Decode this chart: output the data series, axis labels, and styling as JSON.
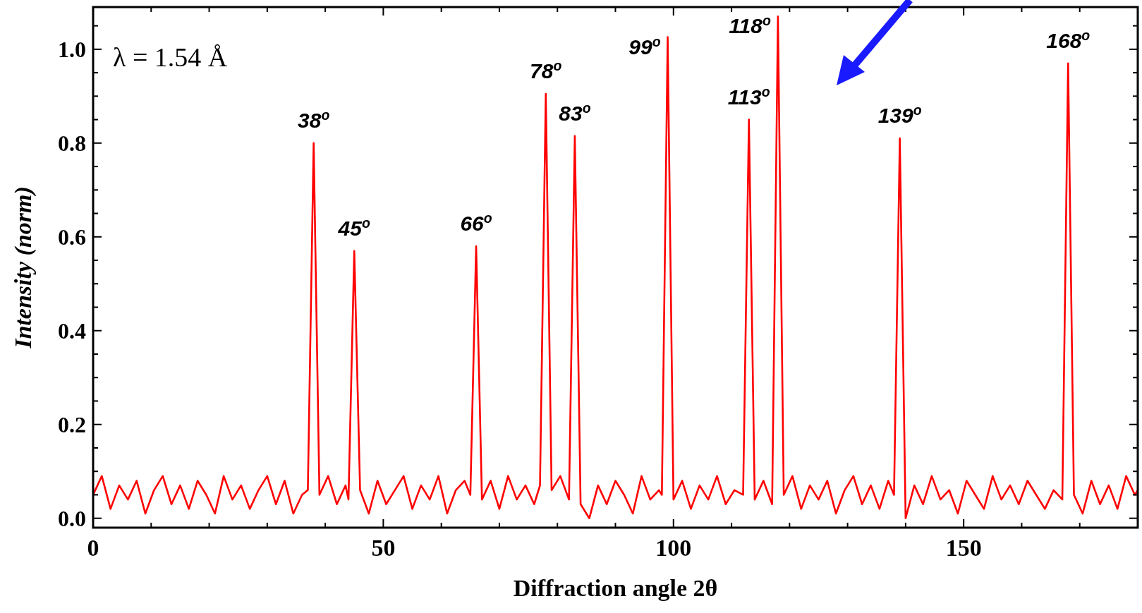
{
  "chart_data": {
    "type": "line",
    "xlabel": "Diffraction angle 2θ",
    "ylabel": "Intensity (norm)",
    "xlim": [
      0,
      180
    ],
    "ylim": [
      -0.02,
      1.09
    ],
    "xticks": [
      0,
      {
        "value": 10,
        "label": null
      },
      {
        "value": 20,
        "label": null
      },
      {
        "value": 30,
        "label": null
      },
      {
        "value": 40,
        "label": null
      },
      50,
      {
        "value": 60,
        "label": null
      },
      {
        "value": 70,
        "label": null
      },
      {
        "value": 80,
        "label": null
      },
      {
        "value": 90,
        "label": null
      },
      100,
      {
        "value": 110,
        "label": null
      },
      {
        "value": 120,
        "label": null
      },
      {
        "value": 130,
        "label": null
      },
      {
        "value": 140,
        "label": null
      },
      150,
      {
        "value": 160,
        "label": null
      },
      {
        "value": 170,
        "label": null
      }
    ],
    "yticks": [
      {
        "value": 0,
        "label": "0.0"
      },
      {
        "value": 0.05,
        "label": null
      },
      {
        "value": 0.1,
        "label": null
      },
      {
        "value": 0.15,
        "label": null
      },
      {
        "value": 0.2,
        "label": "0.2"
      },
      {
        "value": 0.25,
        "label": null
      },
      {
        "value": 0.3,
        "label": null
      },
      {
        "value": 0.35,
        "label": null
      },
      {
        "value": 0.4,
        "label": "0.4"
      },
      {
        "value": 0.45,
        "label": null
      },
      {
        "value": 0.5,
        "label": null
      },
      {
        "value": 0.55,
        "label": null
      },
      {
        "value": 0.6,
        "label": "0.6"
      },
      {
        "value": 0.65,
        "label": null
      },
      {
        "value": 0.7,
        "label": null
      },
      {
        "value": 0.75,
        "label": null
      },
      {
        "value": 0.8,
        "label": "0.8"
      },
      {
        "value": 0.85,
        "label": null
      },
      {
        "value": 0.9,
        "label": null
      },
      {
        "value": 0.95,
        "label": null
      },
      {
        "value": 1.0,
        "label": "1.0"
      },
      {
        "value": 1.05,
        "label": null
      }
    ],
    "grid": false,
    "series": [
      {
        "color": "#ff0000",
        "x": [
          0,
          1.5,
          3,
          4.5,
          6,
          7.5,
          9,
          10.5,
          12,
          13.5,
          15,
          16.5,
          18,
          19.5,
          21,
          22.5,
          24,
          25.5,
          27,
          28.5,
          30,
          31.5,
          33,
          34.5,
          36,
          37,
          38,
          39,
          40.5,
          42,
          43.5,
          44,
          45,
          46,
          47.5,
          49,
          50.5,
          52,
          53.5,
          55,
          56.5,
          58,
          59.5,
          61,
          62.5,
          64,
          65,
          66,
          67,
          68.5,
          70,
          71.5,
          73,
          74.5,
          76,
          77,
          78,
          79,
          80.5,
          82,
          83,
          84,
          85.5,
          87,
          88.5,
          90,
          91.5,
          93,
          94.5,
          96,
          97.5,
          98,
          99,
          100,
          101.5,
          103,
          104.5,
          106,
          107.5,
          109,
          110.5,
          112,
          113,
          114,
          115.5,
          117,
          118,
          119,
          120.5,
          122,
          123.5,
          125,
          126.5,
          128,
          129.5,
          131,
          132.5,
          134,
          135.5,
          137,
          138,
          139,
          140,
          141.5,
          143,
          144.5,
          146,
          147.5,
          149,
          150.5,
          152,
          153.5,
          155,
          156.5,
          158,
          159.5,
          161,
          162.5,
          164,
          165.5,
          167,
          168,
          169,
          170.5,
          172,
          173.5,
          175,
          176.5,
          178,
          179.5,
          180
        ],
        "values": [
          0.05,
          0.09,
          0.02,
          0.07,
          0.04,
          0.08,
          0.01,
          0.06,
          0.09,
          0.03,
          0.07,
          0.02,
          0.08,
          0.05,
          0.01,
          0.09,
          0.04,
          0.07,
          0.02,
          0.06,
          0.09,
          0.03,
          0.08,
          0.01,
          0.05,
          0.06,
          0.8,
          0.05,
          0.09,
          0.03,
          0.07,
          0.04,
          0.57,
          0.06,
          0.01,
          0.08,
          0.03,
          0.06,
          0.09,
          0.02,
          0.07,
          0.04,
          0.09,
          0.01,
          0.06,
          0.08,
          0.05,
          0.58,
          0.04,
          0.08,
          0.02,
          0.09,
          0.04,
          0.07,
          0.03,
          0.07,
          0.905,
          0.06,
          0.09,
          0.04,
          0.815,
          0.03,
          0.0,
          0.07,
          0.03,
          0.08,
          0.05,
          0.01,
          0.09,
          0.04,
          0.06,
          0.05,
          1.026,
          0.04,
          0.08,
          0.02,
          0.07,
          0.04,
          0.09,
          0.03,
          0.06,
          0.05,
          0.85,
          0.04,
          0.08,
          0.03,
          1.07,
          0.05,
          0.09,
          0.02,
          0.07,
          0.04,
          0.08,
          0.01,
          0.06,
          0.09,
          0.03,
          0.07,
          0.02,
          0.08,
          0.05,
          0.81,
          0.0,
          0.07,
          0.03,
          0.09,
          0.04,
          0.06,
          0.01,
          0.08,
          0.05,
          0.02,
          0.09,
          0.04,
          0.07,
          0.03,
          0.08,
          0.05,
          0.02,
          0.06,
          0.04,
          0.97,
          0.05,
          0.01,
          0.08,
          0.03,
          0.07,
          0.02,
          0.09,
          0.05,
          0.06
        ]
      }
    ],
    "annotations": [
      "λ = 1.54 Å",
      {
        "text": "38$^{o}$",
        "x": 38,
        "y": 0.8
      },
      {
        "text": "45$^{o}$",
        "x": 45,
        "y": 0.57
      },
      {
        "text": "66$^{o}$",
        "x": 66,
        "y": 0.58
      },
      {
        "text": "78$^{o}$",
        "x": 78,
        "y": 0.905
      },
      {
        "text": "83$^{o}$",
        "x": 83,
        "y": 0.815
      },
      {
        "text": "99$^{o}$",
        "x": 99,
        "y": 1.026
      },
      {
        "text": "113$^{o}$",
        "x": 113,
        "y": 0.85
      },
      {
        "text": "118$^{o}$",
        "x": 118,
        "y": 1.07
      },
      {
        "text": "139$^{o}$",
        "x": 139,
        "y": 0.81
      },
      {
        "text": "168$^{o}$",
        "x": 168,
        "y": 0.97
      }
    ]
  }
}
